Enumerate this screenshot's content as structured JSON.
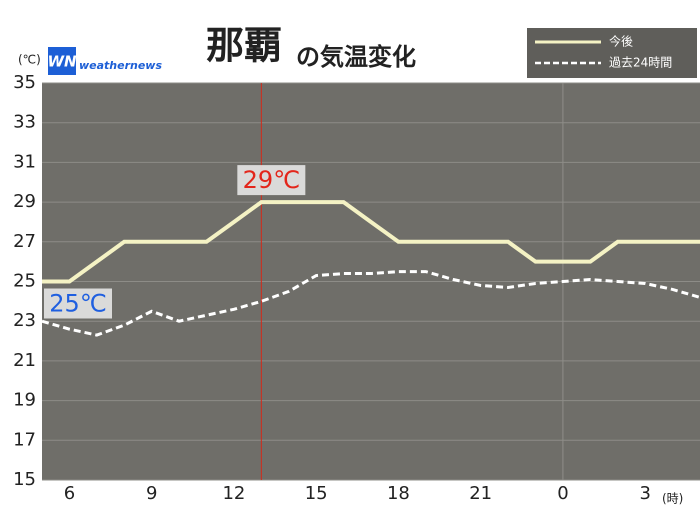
{
  "chart_data": {
    "type": "line",
    "title": "那覇",
    "title_suffix": "の気温変化",
    "logo": {
      "mark": "WN",
      "text": "weathernews"
    },
    "y_unit": "(℃)",
    "x_unit": "(時)",
    "x": [
      5,
      6,
      7,
      8,
      9,
      10,
      11,
      12,
      13,
      14,
      15,
      16,
      17,
      18,
      19,
      20,
      21,
      22,
      23,
      24,
      25,
      26,
      27,
      28,
      29
    ],
    "series": [
      {
        "name": "今後",
        "color": "#f4f2c4",
        "dash": false,
        "values": [
          25,
          25,
          26,
          27,
          27,
          27,
          27,
          28,
          29,
          29,
          29,
          29,
          28,
          27,
          27,
          27,
          27,
          27,
          26,
          26,
          26,
          27,
          27,
          27,
          27
        ]
      },
      {
        "name": "過去24時間",
        "color": "#ffffff",
        "dash": true,
        "values": [
          23.0,
          22.6,
          22.3,
          22.8,
          23.5,
          23.0,
          23.3,
          23.6,
          24.0,
          24.5,
          25.3,
          25.4,
          25.4,
          25.5,
          25.5,
          25.1,
          24.8,
          24.7,
          24.9,
          25.0,
          25.1,
          25.0,
          24.9,
          24.6,
          24.2
        ]
      }
    ],
    "annotations": [
      {
        "text": "29℃",
        "color": "#e3261b",
        "series": 0,
        "index": 8
      },
      {
        "text": "25℃",
        "color": "#1f5fe0",
        "series": 0,
        "index": 0
      }
    ],
    "vlines": [
      {
        "x": 13,
        "color": "#d42a1a"
      },
      {
        "x": 24,
        "color": "#8f8e89"
      }
    ],
    "xlim": [
      5,
      29
    ],
    "ylim": [
      15,
      35
    ],
    "xticks": [
      6,
      9,
      12,
      15,
      18,
      21,
      {
        "value": 24,
        "label": "0"
      },
      {
        "value": 27,
        "label": "3"
      }
    ],
    "yticks": [
      15,
      17,
      19,
      21,
      23,
      25,
      27,
      29,
      31,
      33,
      35
    ],
    "grid": true,
    "plot_color": "#6f6e69",
    "legend": "top-right"
  }
}
